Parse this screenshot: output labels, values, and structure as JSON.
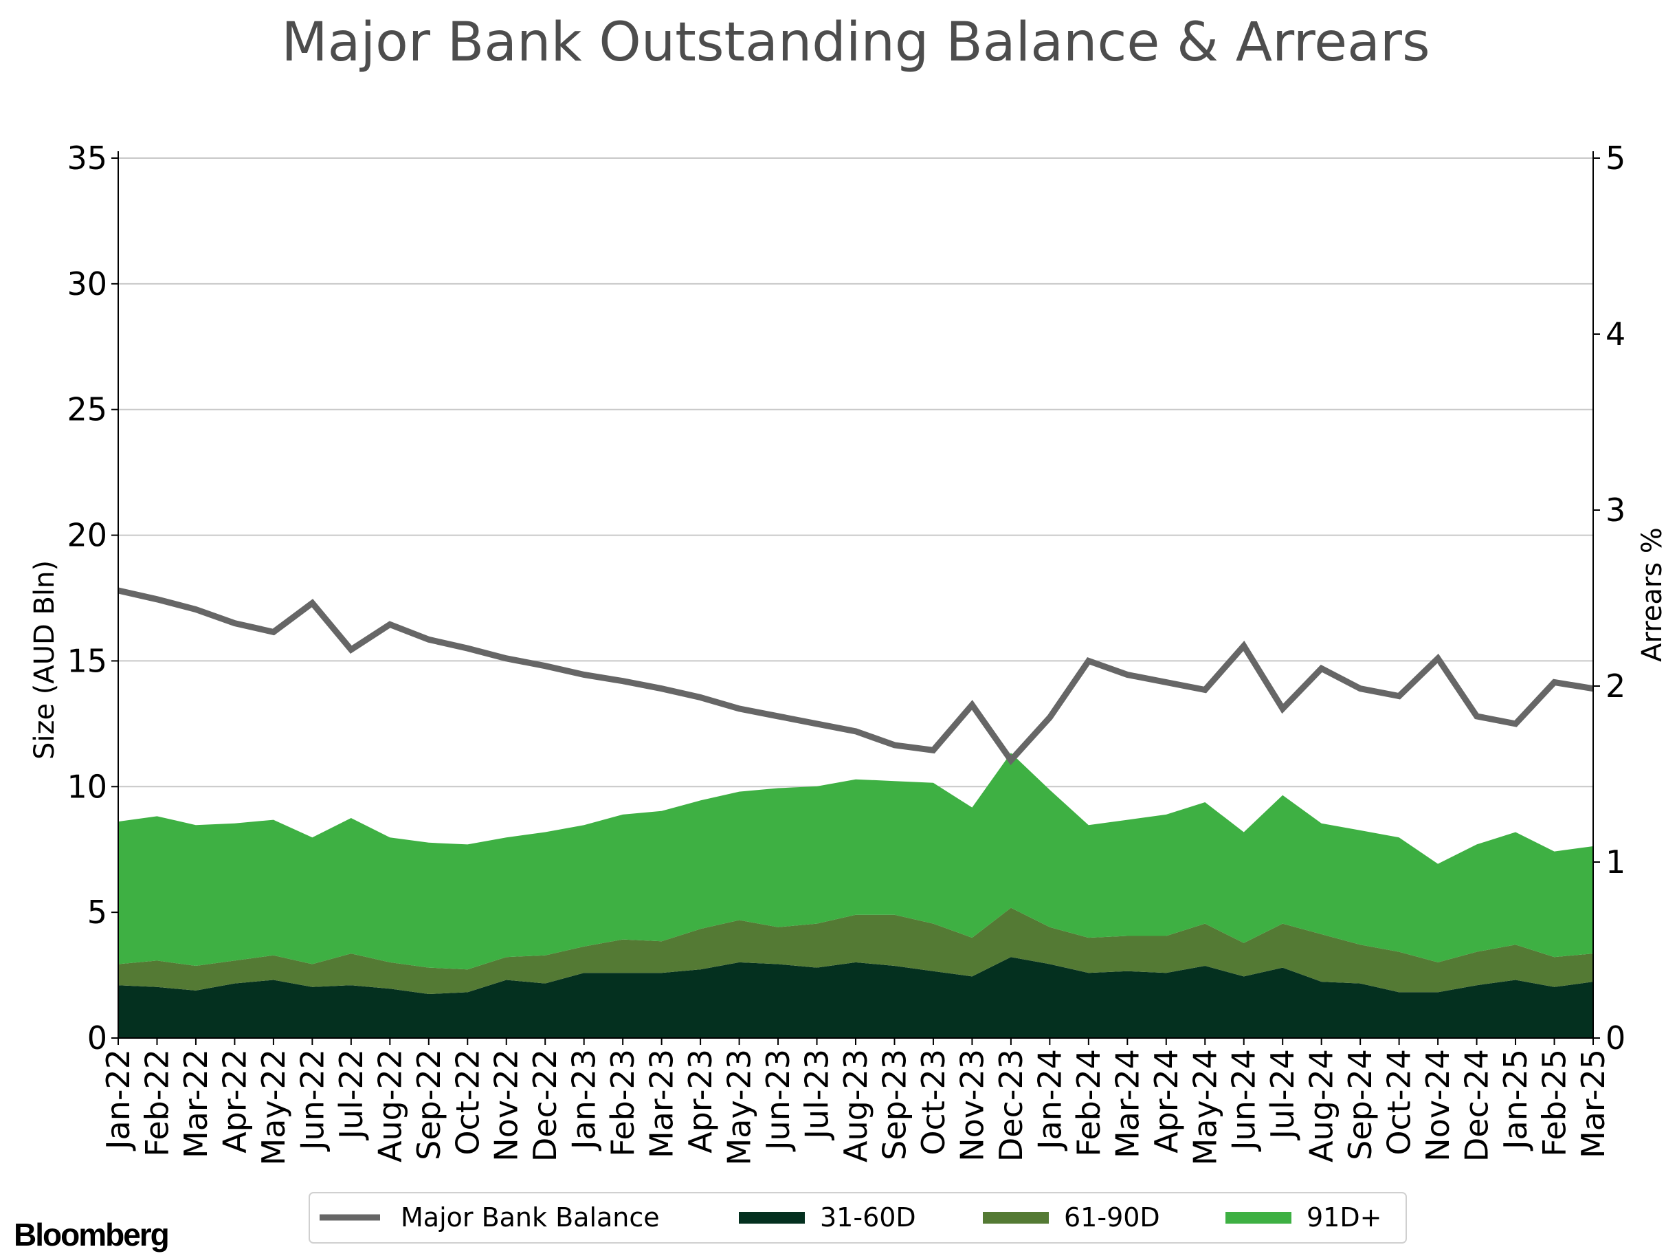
{
  "chart_data": {
    "type": "area",
    "title": "Major Bank Outstanding Balance & Arrears",
    "ylabel": "Size (AUD Bln)",
    "y2label": "Arrears %",
    "ylim": [
      0,
      35
    ],
    "y2lim": [
      0,
      5
    ],
    "yticks": [
      0,
      5,
      10,
      15,
      20,
      25,
      30,
      35
    ],
    "y2ticks": [
      0,
      1,
      2,
      3,
      4,
      5
    ],
    "grid": true,
    "legend_position": "bottom-center",
    "categories": [
      "Jan-22",
      "Feb-22",
      "Mar-22",
      "Apr-22",
      "May-22",
      "Jun-22",
      "Jul-22",
      "Aug-22",
      "Sep-22",
      "Oct-22",
      "Nov-22",
      "Dec-22",
      "Jan-23",
      "Feb-23",
      "Mar-23",
      "Apr-23",
      "May-23",
      "Jun-23",
      "Jul-23",
      "Aug-23",
      "Sep-23",
      "Oct-23",
      "Nov-23",
      "Dec-23",
      "Jan-24",
      "Feb-24",
      "Mar-24",
      "Apr-24",
      "May-24",
      "Jun-24",
      "Jul-24",
      "Aug-24",
      "Sep-24",
      "Oct-24",
      "Nov-24",
      "Dec-24",
      "Jan-25",
      "Feb-25",
      "Mar-25"
    ],
    "line_series": {
      "name": "Major Bank Balance",
      "axis": "left",
      "color": "#666666",
      "values": [
        17.8,
        17.45,
        17.05,
        16.5,
        16.15,
        17.3,
        15.45,
        16.45,
        15.85,
        15.5,
        15.1,
        14.8,
        14.45,
        14.2,
        13.9,
        13.55,
        13.1,
        12.8,
        12.5,
        12.2,
        11.65,
        11.45,
        13.25,
        11.05,
        12.75,
        15.0,
        14.45,
        14.15,
        13.85,
        15.6,
        13.1,
        14.7,
        13.9,
        13.6,
        15.1,
        12.8,
        12.5,
        14.15,
        13.9
      ]
    },
    "series": [
      {
        "name": "31-60D",
        "axis": "right",
        "color": "#04301f",
        "values": [
          0.3,
          0.29,
          0.27,
          0.31,
          0.33,
          0.29,
          0.3,
          0.28,
          0.25,
          0.26,
          0.33,
          0.31,
          0.37,
          0.37,
          0.37,
          0.39,
          0.43,
          0.42,
          0.4,
          0.43,
          0.41,
          0.38,
          0.35,
          0.46,
          0.42,
          0.37,
          0.38,
          0.37,
          0.41,
          0.35,
          0.4,
          0.32,
          0.31,
          0.26,
          0.26,
          0.3,
          0.33,
          0.29,
          0.32
        ]
      },
      {
        "name": "61-90D",
        "axis": "right",
        "color": "#547a34",
        "values": [
          0.12,
          0.15,
          0.14,
          0.13,
          0.14,
          0.13,
          0.18,
          0.15,
          0.15,
          0.13,
          0.13,
          0.16,
          0.15,
          0.19,
          0.18,
          0.23,
          0.24,
          0.21,
          0.25,
          0.27,
          0.29,
          0.27,
          0.22,
          0.28,
          0.21,
          0.2,
          0.2,
          0.21,
          0.24,
          0.19,
          0.25,
          0.27,
          0.22,
          0.23,
          0.17,
          0.19,
          0.2,
          0.17,
          0.16
        ]
      },
      {
        "name": "91D+",
        "axis": "right",
        "color": "#3eb043",
        "values": [
          0.81,
          0.82,
          0.8,
          0.78,
          0.77,
          0.72,
          0.77,
          0.71,
          0.71,
          0.71,
          0.68,
          0.7,
          0.69,
          0.71,
          0.74,
          0.73,
          0.73,
          0.79,
          0.78,
          0.77,
          0.76,
          0.8,
          0.74,
          0.88,
          0.78,
          0.64,
          0.66,
          0.69,
          0.69,
          0.63,
          0.73,
          0.63,
          0.65,
          0.65,
          0.56,
          0.61,
          0.64,
          0.6,
          0.61
        ]
      }
    ]
  },
  "branding": {
    "logo_text": "Bloomberg"
  }
}
